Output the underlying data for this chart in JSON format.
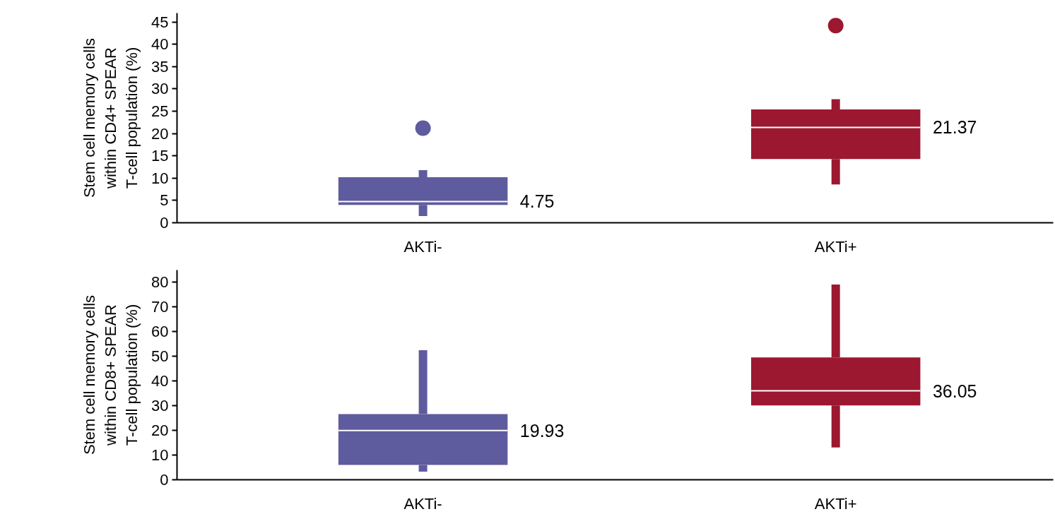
{
  "chart_data": [
    {
      "type": "box",
      "ylabel": "Stem cell memory cells\nwithin CD4+ SPEAR\nT-cell population (%)",
      "categories": [
        "AKTi-",
        "AKTi+"
      ],
      "colors": [
        "#5f5b9f",
        "#9b1830"
      ],
      "ylim": [
        0,
        47
      ],
      "yticks": [
        0,
        5,
        10,
        15,
        20,
        25,
        30,
        35,
        40,
        45
      ],
      "grid": false,
      "value_labels": [
        "4.75",
        "21.37"
      ],
      "boxes": [
        {
          "low": 1.5,
          "q1": 4.0,
          "median": 4.75,
          "q3": 10.2,
          "high": 11.8,
          "outliers": [
            21.2
          ]
        },
        {
          "low": 8.6,
          "q1": 14.3,
          "median": 21.37,
          "q3": 25.4,
          "high": 27.7,
          "outliers": [
            44.2
          ]
        }
      ]
    },
    {
      "type": "box",
      "ylabel": "Stem cell memory cells\nwithin CD8+ SPEAR\nT-cell population (%)",
      "categories": [
        "AKTi-",
        "AKTi+"
      ],
      "colors": [
        "#5f5b9f",
        "#9b1830"
      ],
      "ylim": [
        0,
        85
      ],
      "yticks": [
        0,
        10,
        20,
        30,
        40,
        50,
        60,
        70,
        80
      ],
      "grid": false,
      "value_labels": [
        "19.93",
        "36.05"
      ],
      "boxes": [
        {
          "low": 3.3,
          "q1": 6.0,
          "median": 19.93,
          "q3": 26.6,
          "high": 52.5
        },
        {
          "low": 13.1,
          "q1": 30.1,
          "median": 36.05,
          "q3": 49.6,
          "high": 79.1
        }
      ]
    }
  ]
}
